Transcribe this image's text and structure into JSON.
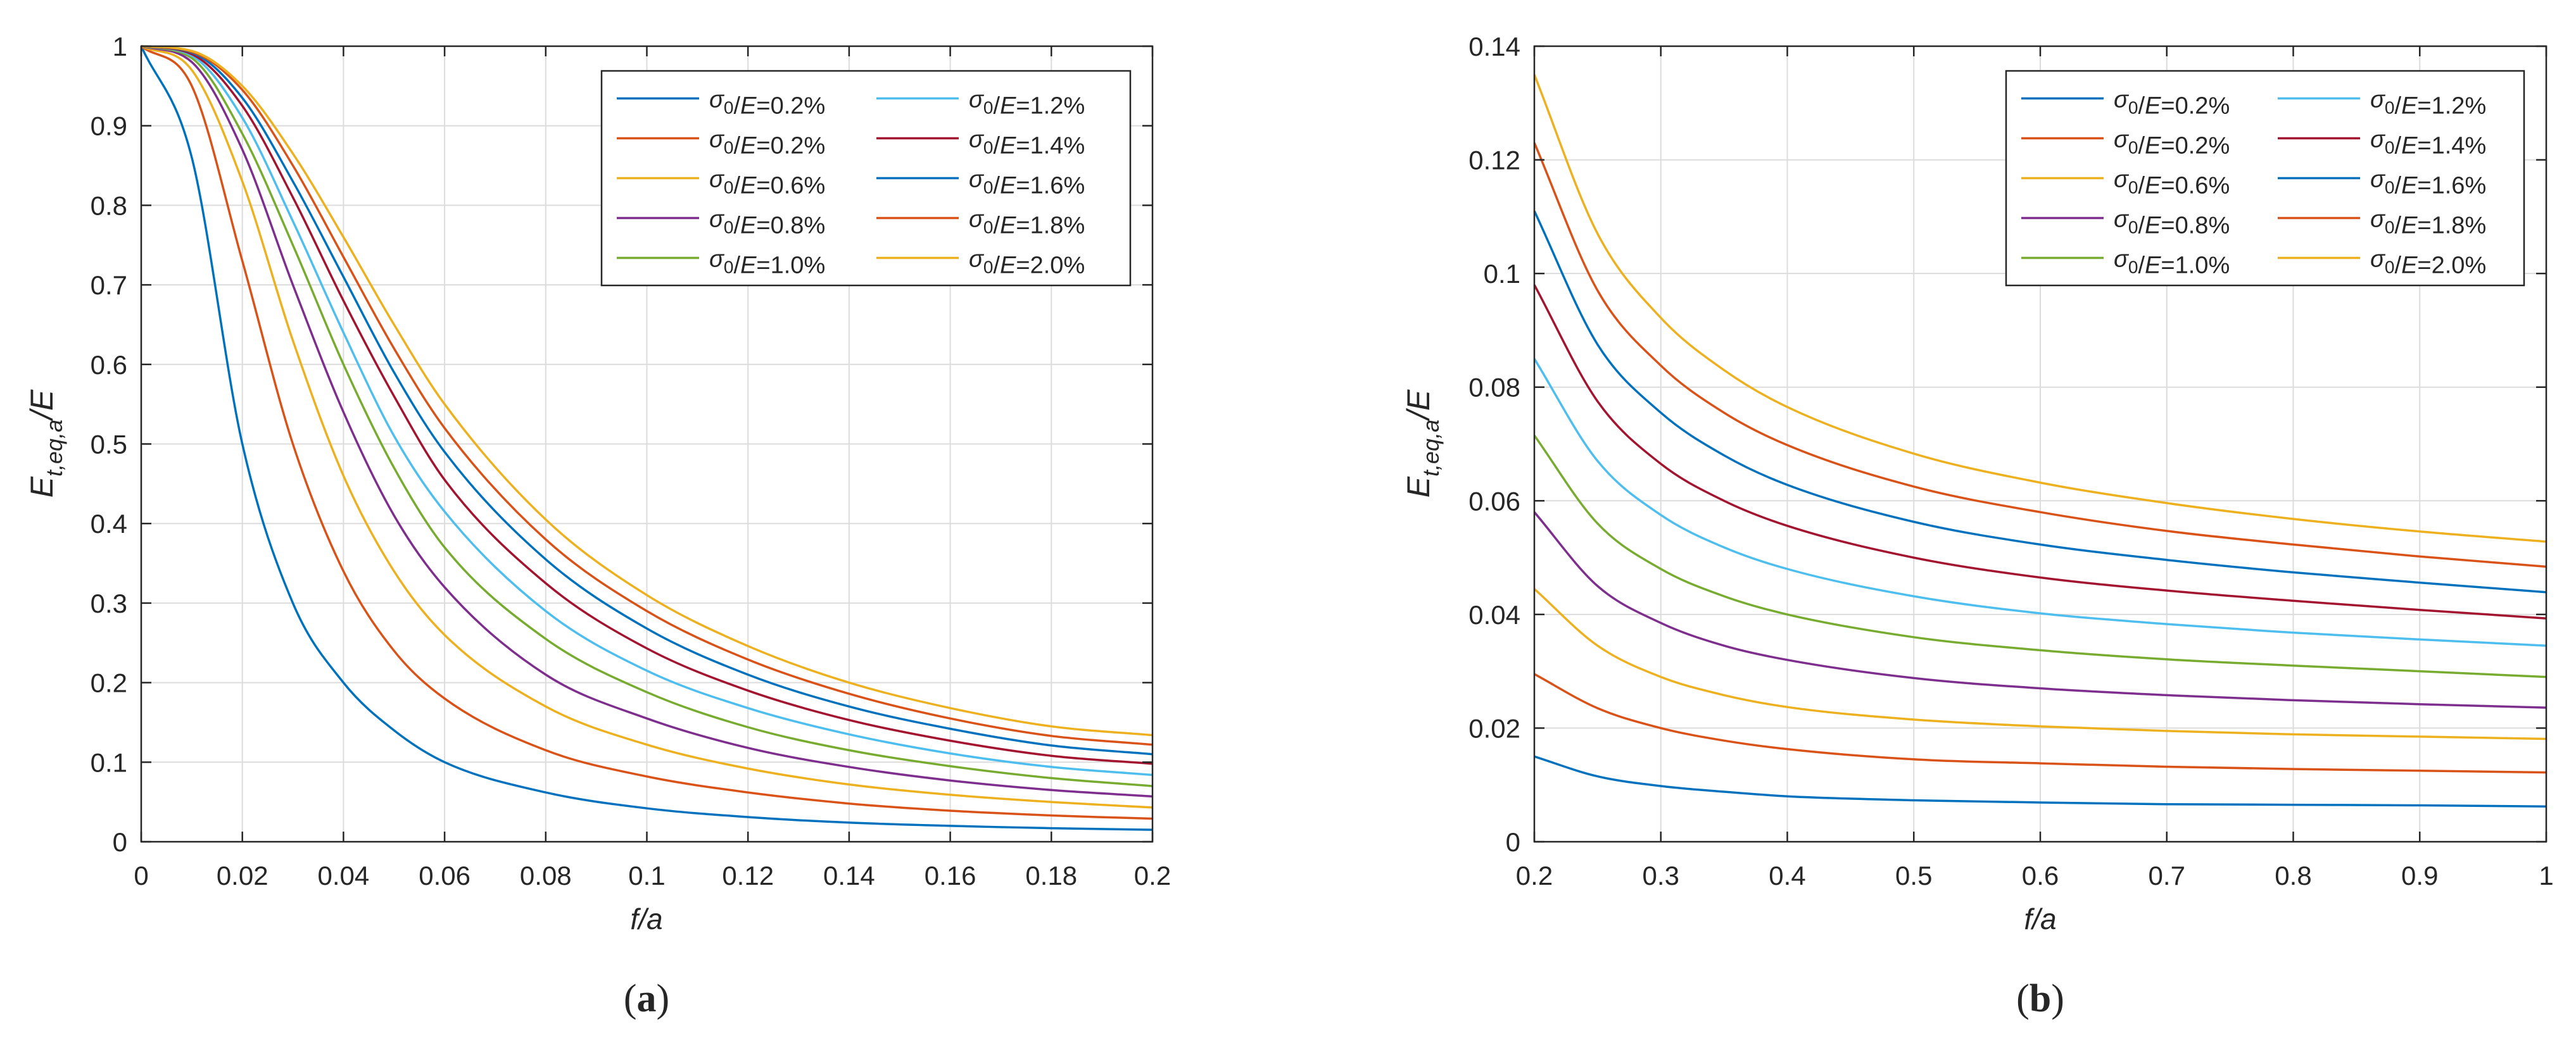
{
  "figure": {
    "panels": [
      {
        "caption_open": "(",
        "caption_letter": "a",
        "caption_close": ")"
      },
      {
        "caption_open": "(",
        "caption_letter": "b",
        "caption_close": ")"
      }
    ]
  },
  "chart_data": [
    {
      "type": "line",
      "panel": "a",
      "title": "",
      "xlabel": "f/a",
      "ylabel": "E_t,eq,a/E",
      "xlim": [
        0,
        0.2
      ],
      "ylim": [
        0,
        1
      ],
      "xticks": [
        0,
        0.02,
        0.04,
        0.06,
        0.08,
        0.1,
        0.12,
        0.14,
        0.16,
        0.18,
        0.2
      ],
      "xtick_labels": [
        "0",
        "0.02",
        "0.04",
        "0.06",
        "0.08",
        "0.1",
        "0.12",
        "0.14",
        "0.16",
        "0.18",
        "0.2"
      ],
      "yticks": [
        0,
        0.1,
        0.2,
        0.3,
        0.4,
        0.5,
        0.6,
        0.7,
        0.8,
        0.9,
        1
      ],
      "ytick_labels": [
        "0",
        "0.1",
        "0.2",
        "0.3",
        "0.4",
        "0.5",
        "0.6",
        "0.7",
        "0.8",
        "0.9",
        "1"
      ],
      "grid": true,
      "legend_position": "top-right",
      "x": [
        0,
        0.01,
        0.02,
        0.03,
        0.04,
        0.05,
        0.06,
        0.08,
        0.1,
        0.12,
        0.14,
        0.16,
        0.18,
        0.2
      ],
      "series": [
        {
          "legend_prefix": "σ",
          "legend_sub": "0",
          "legend_suffix": "/E=0.2%",
          "color": "#0072BD",
          "values": [
            1,
            0.86,
            0.5,
            0.3,
            0.2,
            0.14,
            0.1,
            0.062,
            0.042,
            0.031,
            0.024,
            0.02,
            0.017,
            0.015
          ]
        },
        {
          "legend_prefix": "σ",
          "legend_sub": "0",
          "legend_suffix": "/E=0.2%",
          "color": "#D95319",
          "values": [
            1,
            0.95,
            0.73,
            0.5,
            0.34,
            0.24,
            0.18,
            0.115,
            0.082,
            0.062,
            0.048,
            0.039,
            0.033,
            0.029
          ]
        },
        {
          "legend_prefix": "σ",
          "legend_sub": "0",
          "legend_suffix": "/E=0.6%",
          "color": "#EDB120",
          "values": [
            1,
            0.97,
            0.83,
            0.63,
            0.46,
            0.34,
            0.26,
            0.17,
            0.122,
            0.092,
            0.072,
            0.059,
            0.05,
            0.043
          ]
        },
        {
          "legend_prefix": "σ",
          "legend_sub": "0",
          "legend_suffix": "/E=0.8%",
          "color": "#7E2F8E",
          "values": [
            1,
            0.98,
            0.87,
            0.7,
            0.54,
            0.41,
            0.32,
            0.21,
            0.155,
            0.118,
            0.094,
            0.077,
            0.065,
            0.057
          ]
        },
        {
          "legend_prefix": "σ",
          "legend_sub": "0",
          "legend_suffix": "/E=1.0%",
          "color": "#77AC30",
          "values": [
            1,
            0.985,
            0.89,
            0.75,
            0.6,
            0.47,
            0.37,
            0.255,
            0.188,
            0.144,
            0.115,
            0.095,
            0.08,
            0.07
          ]
        },
        {
          "legend_prefix": "σ",
          "legend_sub": "0",
          "legend_suffix": "/E=1.2%",
          "color": "#4DBEEE",
          "values": [
            1,
            0.988,
            0.91,
            0.78,
            0.64,
            0.51,
            0.415,
            0.29,
            0.215,
            0.168,
            0.135,
            0.111,
            0.094,
            0.084
          ]
        },
        {
          "legend_prefix": "σ",
          "legend_sub": "0",
          "legend_suffix": "/E=1.4%",
          "color": "#A2142F",
          "values": [
            1,
            0.99,
            0.925,
            0.81,
            0.68,
            0.56,
            0.455,
            0.325,
            0.243,
            0.19,
            0.153,
            0.127,
            0.108,
            0.098
          ]
        },
        {
          "legend_prefix": "σ",
          "legend_sub": "0",
          "legend_suffix": "/E=1.6%",
          "color": "#0072BD",
          "values": [
            1,
            0.992,
            0.935,
            0.83,
            0.71,
            0.59,
            0.49,
            0.355,
            0.268,
            0.21,
            0.17,
            0.142,
            0.121,
            0.11
          ]
        },
        {
          "legend_prefix": "σ",
          "legend_sub": "0",
          "legend_suffix": "/E=1.8%",
          "color": "#D95319",
          "values": [
            1,
            0.993,
            0.945,
            0.85,
            0.735,
            0.62,
            0.52,
            0.38,
            0.29,
            0.229,
            0.186,
            0.155,
            0.133,
            0.122
          ]
        },
        {
          "legend_prefix": "σ",
          "legend_sub": "0",
          "legend_suffix": "/E=2.0%",
          "color": "#EDB120",
          "values": [
            1,
            0.994,
            0.95,
            0.865,
            0.76,
            0.65,
            0.55,
            0.405,
            0.31,
            0.246,
            0.2,
            0.168,
            0.145,
            0.134
          ]
        }
      ]
    },
    {
      "type": "line",
      "panel": "b",
      "title": "",
      "xlabel": "f/a",
      "ylabel": "E_t,eq,a/E",
      "xlim": [
        0.2,
        1
      ],
      "ylim": [
        0,
        0.14
      ],
      "xticks": [
        0.2,
        0.3,
        0.4,
        0.5,
        0.6,
        0.7,
        0.8,
        0.9,
        1
      ],
      "xtick_labels": [
        "0.2",
        "0.3",
        "0.4",
        "0.5",
        "0.6",
        "0.7",
        "0.8",
        "0.9",
        "1"
      ],
      "yticks": [
        0,
        0.02,
        0.04,
        0.06,
        0.08,
        0.1,
        0.12,
        0.14
      ],
      "ytick_labels": [
        "0",
        "0.02",
        "0.04",
        "0.06",
        "0.08",
        "0.1",
        "0.12",
        "0.14"
      ],
      "grid": true,
      "legend_position": "top-right",
      "x": [
        0.2,
        0.25,
        0.3,
        0.35,
        0.4,
        0.5,
        0.6,
        0.7,
        0.8,
        0.9,
        1
      ],
      "series": [
        {
          "legend_prefix": "σ",
          "legend_sub": "0",
          "legend_suffix": "/E=0.2%",
          "color": "#0072BD",
          "values": [
            0.015,
            0.0115,
            0.0098,
            0.0088,
            0.008,
            0.0073,
            0.0069,
            0.0066,
            0.0065,
            0.0064,
            0.0062
          ]
        },
        {
          "legend_prefix": "σ",
          "legend_sub": "0",
          "legend_suffix": "/E=0.2%",
          "color": "#D95319",
          "values": [
            0.0295,
            0.0235,
            0.02,
            0.0178,
            0.0163,
            0.0145,
            0.0138,
            0.0132,
            0.0128,
            0.0125,
            0.0122
          ]
        },
        {
          "legend_prefix": "σ",
          "legend_sub": "0",
          "legend_suffix": "/E=0.6%",
          "color": "#EDB120",
          "values": [
            0.0445,
            0.0345,
            0.029,
            0.0258,
            0.0237,
            0.0215,
            0.0203,
            0.0195,
            0.0189,
            0.0185,
            0.0181
          ]
        },
        {
          "legend_prefix": "σ",
          "legend_sub": "0",
          "legend_suffix": "/E=0.8%",
          "color": "#7E2F8E",
          "values": [
            0.058,
            0.045,
            0.0385,
            0.0345,
            0.032,
            0.0288,
            0.027,
            0.0258,
            0.0249,
            0.0242,
            0.0236
          ]
        },
        {
          "legend_prefix": "σ",
          "legend_sub": "0",
          "legend_suffix": "/E=1.0%",
          "color": "#77AC30",
          "values": [
            0.0715,
            0.056,
            0.048,
            0.0432,
            0.04,
            0.036,
            0.0337,
            0.0321,
            0.031,
            0.03,
            0.029
          ]
        },
        {
          "legend_prefix": "σ",
          "legend_sub": "0",
          "legend_suffix": "/E=1.2%",
          "color": "#4DBEEE",
          "values": [
            0.085,
            0.067,
            0.0575,
            0.0518,
            0.048,
            0.0432,
            0.0402,
            0.0383,
            0.0368,
            0.0356,
            0.0345
          ]
        },
        {
          "legend_prefix": "σ",
          "legend_sub": "0",
          "legend_suffix": "/E=1.4%",
          "color": "#A2142F",
          "values": [
            0.098,
            0.0775,
            0.0665,
            0.06,
            0.0556,
            0.05,
            0.0465,
            0.0442,
            0.0424,
            0.0408,
            0.0393
          ]
        },
        {
          "legend_prefix": "σ",
          "legend_sub": "0",
          "legend_suffix": "/E=1.6%",
          "color": "#0072BD",
          "values": [
            0.111,
            0.0875,
            0.0755,
            0.068,
            0.0628,
            0.0563,
            0.0523,
            0.0496,
            0.0474,
            0.0456,
            0.0439
          ]
        },
        {
          "legend_prefix": "σ",
          "legend_sub": "0",
          "legend_suffix": "/E=1.8%",
          "color": "#D95319",
          "values": [
            0.123,
            0.097,
            0.0838,
            0.0755,
            0.0698,
            0.0625,
            0.058,
            0.0547,
            0.0523,
            0.0502,
            0.0484
          ]
        },
        {
          "legend_prefix": "σ",
          "legend_sub": "0",
          "legend_suffix": "/E=2.0%",
          "color": "#EDB120",
          "values": [
            0.135,
            0.107,
            0.0922,
            0.083,
            0.0765,
            0.0683,
            0.0632,
            0.0596,
            0.0568,
            0.0546,
            0.0528
          ]
        }
      ]
    }
  ]
}
